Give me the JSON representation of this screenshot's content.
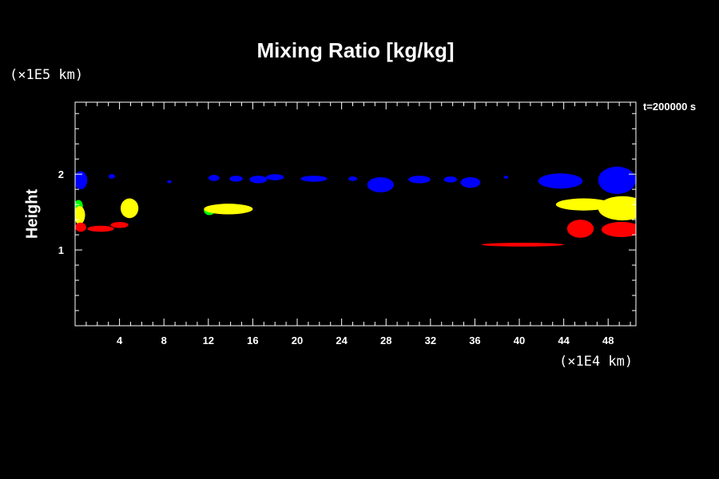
{
  "chart_data": {
    "type": "heatmap",
    "title": "Mixing Ratio [kg/kg]",
    "ylabel": "Height",
    "yunit": "(×1E5 km)",
    "xunit": "(×1E4 km)",
    "time_label": "t=200000 s",
    "xlim": [
      0,
      50.5
    ],
    "ylim": [
      0,
      2.95
    ],
    "x_ticks": [
      4,
      8,
      12,
      16,
      20,
      24,
      28,
      32,
      36,
      40,
      44,
      48
    ],
    "x_tick_labels": [
      "4",
      "8",
      "12",
      "16",
      "20",
      "24",
      "28",
      "32",
      "36",
      "40",
      "44",
      "48"
    ],
    "y_ticks": [
      1,
      2
    ],
    "y_tick_labels": [
      "1",
      "2"
    ],
    "x_minor_step": 1,
    "y_minor_step": 0.2,
    "colors": {
      "blue": "#0000ff",
      "yellow": "#ffff00",
      "red": "#ff0000",
      "green": "#00ff00"
    },
    "regions": [
      {
        "color": "blue",
        "cx": 0.5,
        "cy": 1.92,
        "rx": 0.6,
        "ry": 0.12
      },
      {
        "color": "blue",
        "cx": 3.3,
        "cy": 1.97,
        "rx": 0.3,
        "ry": 0.03
      },
      {
        "color": "blue",
        "cx": 8.5,
        "cy": 1.9,
        "rx": 0.2,
        "ry": 0.02
      },
      {
        "color": "blue",
        "cx": 12.5,
        "cy": 1.95,
        "rx": 0.5,
        "ry": 0.04
      },
      {
        "color": "blue",
        "cx": 14.5,
        "cy": 1.94,
        "rx": 0.6,
        "ry": 0.04
      },
      {
        "color": "blue",
        "cx": 16.5,
        "cy": 1.93,
        "rx": 0.8,
        "ry": 0.05
      },
      {
        "color": "blue",
        "cx": 18.0,
        "cy": 1.96,
        "rx": 0.8,
        "ry": 0.04
      },
      {
        "color": "blue",
        "cx": 21.5,
        "cy": 1.94,
        "rx": 1.2,
        "ry": 0.04
      },
      {
        "color": "blue",
        "cx": 25.0,
        "cy": 1.94,
        "rx": 0.4,
        "ry": 0.03
      },
      {
        "color": "blue",
        "cx": 27.5,
        "cy": 1.86,
        "rx": 1.2,
        "ry": 0.1
      },
      {
        "color": "blue",
        "cx": 31.0,
        "cy": 1.93,
        "rx": 1.0,
        "ry": 0.05
      },
      {
        "color": "blue",
        "cx": 33.8,
        "cy": 1.93,
        "rx": 0.6,
        "ry": 0.04
      },
      {
        "color": "blue",
        "cx": 35.6,
        "cy": 1.89,
        "rx": 0.9,
        "ry": 0.07
      },
      {
        "color": "blue",
        "cx": 38.8,
        "cy": 1.96,
        "rx": 0.2,
        "ry": 0.02
      },
      {
        "color": "blue",
        "cx": 43.7,
        "cy": 1.91,
        "rx": 2.0,
        "ry": 0.1
      },
      {
        "color": "blue",
        "cx": 48.8,
        "cy": 1.92,
        "rx": 1.7,
        "ry": 0.18
      },
      {
        "color": "green",
        "cx": 0.3,
        "cy": 1.58,
        "rx": 0.4,
        "ry": 0.08
      },
      {
        "color": "yellow",
        "cx": 0.4,
        "cy": 1.46,
        "rx": 0.5,
        "ry": 0.12
      },
      {
        "color": "yellow",
        "cx": 4.9,
        "cy": 1.55,
        "rx": 0.8,
        "ry": 0.13
      },
      {
        "color": "green",
        "cx": 12.1,
        "cy": 1.52,
        "rx": 0.5,
        "ry": 0.06
      },
      {
        "color": "yellow",
        "cx": 13.8,
        "cy": 1.54,
        "rx": 2.2,
        "ry": 0.07
      },
      {
        "color": "yellow",
        "cx": 45.8,
        "cy": 1.6,
        "rx": 2.5,
        "ry": 0.08
      },
      {
        "color": "yellow",
        "cx": 49.3,
        "cy": 1.55,
        "rx": 2.2,
        "ry": 0.16
      },
      {
        "color": "red",
        "cx": 0.5,
        "cy": 1.3,
        "rx": 0.5,
        "ry": 0.06
      },
      {
        "color": "red",
        "cx": 2.3,
        "cy": 1.28,
        "rx": 1.2,
        "ry": 0.04
      },
      {
        "color": "red",
        "cx": 4.0,
        "cy": 1.33,
        "rx": 0.8,
        "ry": 0.04
      },
      {
        "color": "red",
        "cx": 45.5,
        "cy": 1.28,
        "rx": 1.2,
        "ry": 0.12
      },
      {
        "color": "red",
        "cx": 49.2,
        "cy": 1.27,
        "rx": 1.8,
        "ry": 0.1
      },
      {
        "color": "red",
        "cx": 40.3,
        "cy": 1.07,
        "rx": 3.7,
        "ry": 0.025
      }
    ]
  }
}
